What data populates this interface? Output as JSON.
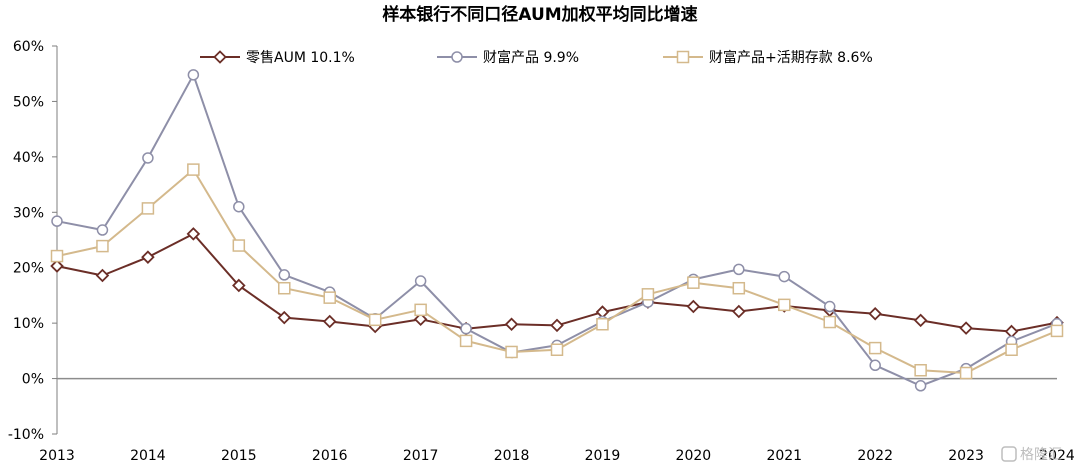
{
  "chart_data": {
    "type": "line",
    "title": "样本银行不同口径AUM加权平均同比增速",
    "xlabel": "",
    "ylabel": "",
    "x_tick_labels": [
      "2013",
      "2014",
      "2015",
      "2016",
      "2017",
      "2018",
      "2019",
      "2020",
      "2021",
      "2022",
      "2023",
      "2024"
    ],
    "y_tick_labels": [
      "-10%",
      "0%",
      "10%",
      "20%",
      "30%",
      "40%",
      "50%",
      "60%"
    ],
    "ylim": [
      -10,
      60
    ],
    "y_unit": "%",
    "grid": false,
    "legend_placement": "top",
    "x": [
      "2013",
      "2013H2",
      "2014",
      "2014H2",
      "2015",
      "2015H2",
      "2016",
      "2016H2",
      "2017",
      "2017H2",
      "2018",
      "2018H2",
      "2019",
      "2019H2",
      "2020",
      "2020H2",
      "2021",
      "2021H2",
      "2022",
      "2022H2",
      "2023",
      "2023H2",
      "2024"
    ],
    "series": [
      {
        "name": "零售AUM 10.1%",
        "color": "#6b2e27",
        "marker": "diamond",
        "values": [
          20.3,
          18.6,
          21.9,
          26.1,
          16.8,
          11.0,
          10.3,
          9.4,
          10.7,
          9.0,
          9.8,
          9.6,
          12.0,
          13.8,
          13.0,
          12.1,
          13.1,
          12.3,
          11.7,
          10.5,
          9.1,
          8.5,
          10.1
        ]
      },
      {
        "name": "财富产品 9.9%",
        "color": "#8e8fa8",
        "marker": "circle",
        "values": [
          28.4,
          26.8,
          39.8,
          54.8,
          31.0,
          18.7,
          15.6,
          10.8,
          17.6,
          9.0,
          4.7,
          6.0,
          10.3,
          13.8,
          17.9,
          19.7,
          18.4,
          13.0,
          2.4,
          -1.3,
          1.8,
          6.7,
          9.9
        ]
      },
      {
        "name": "财富产品+活期存款 8.6%",
        "color": "#d4b98c",
        "marker": "square",
        "values": [
          22.1,
          23.9,
          30.7,
          37.7,
          24.0,
          16.3,
          14.6,
          10.6,
          12.4,
          6.8,
          4.8,
          5.2,
          9.8,
          15.2,
          17.3,
          16.3,
          13.3,
          10.2,
          5.5,
          1.5,
          1.0,
          5.2,
          8.6
        ]
      }
    ]
  },
  "watermark": "格隆汇"
}
